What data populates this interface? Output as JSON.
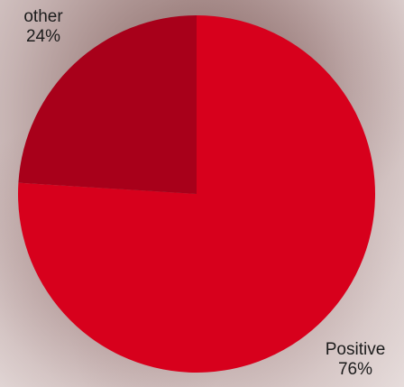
{
  "chart_data": {
    "type": "pie",
    "slices": [
      {
        "label": "Positive",
        "value": 76,
        "display": "76%",
        "color": "#d7001c"
      },
      {
        "label": "other",
        "value": 24,
        "display": "24%",
        "color": "#a8001a"
      }
    ]
  }
}
